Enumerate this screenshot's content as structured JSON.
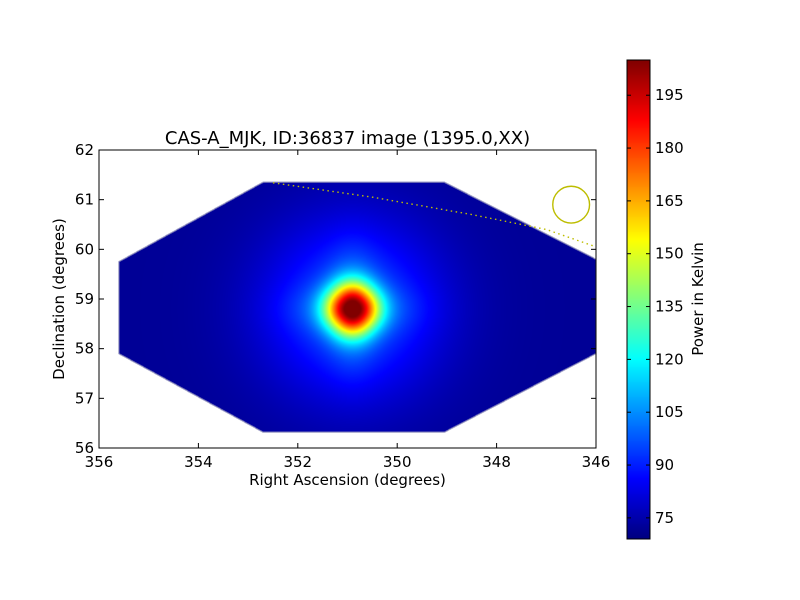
{
  "chart_data": {
    "type": "heatmap",
    "title": "CAS-A_MJK, ID:36837 image (1395.0,XX)",
    "xlabel": "Right Ascension (degrees)",
    "ylabel": "Declination (degrees)",
    "xlim": [
      356,
      346
    ],
    "ylim": [
      56,
      62
    ],
    "xticks": [
      "356",
      "354",
      "352",
      "350",
      "348",
      "346"
    ],
    "yticks": [
      "56",
      "57",
      "58",
      "59",
      "60",
      "61",
      "62"
    ],
    "grid": false,
    "colorbar": {
      "label": "Power in Kelvin",
      "range": [
        69,
        205
      ],
      "colormap": "jet",
      "ticks": [
        "75",
        "90",
        "105",
        "120",
        "135",
        "150",
        "165",
        "180",
        "195"
      ]
    },
    "footprint_vertices_deg": [
      [
        355.6,
        59.75
      ],
      [
        352.7,
        61.35
      ],
      [
        349.05,
        61.35
      ],
      [
        346.0,
        59.8
      ],
      [
        346.0,
        57.9
      ],
      [
        349.05,
        56.32
      ],
      [
        352.7,
        56.32
      ],
      [
        355.6,
        57.9
      ]
    ],
    "background_level_K": 72,
    "source": {
      "ra": 350.9,
      "dec": 58.8,
      "peak_K": 203,
      "core_width_deg": 0.6,
      "halo_width_deg": 2.0
    },
    "beam_circle": {
      "ra": 346.5,
      "dec": 60.9,
      "radius_deg": 0.37,
      "color": "#bdbd00"
    },
    "horizon_track": [
      [
        352.5,
        61.34
      ],
      [
        350.5,
        61.05
      ],
      [
        348.5,
        60.7
      ],
      [
        347.0,
        60.4
      ],
      [
        346.0,
        60.05
      ]
    ],
    "track_color": "#bdbd00"
  }
}
